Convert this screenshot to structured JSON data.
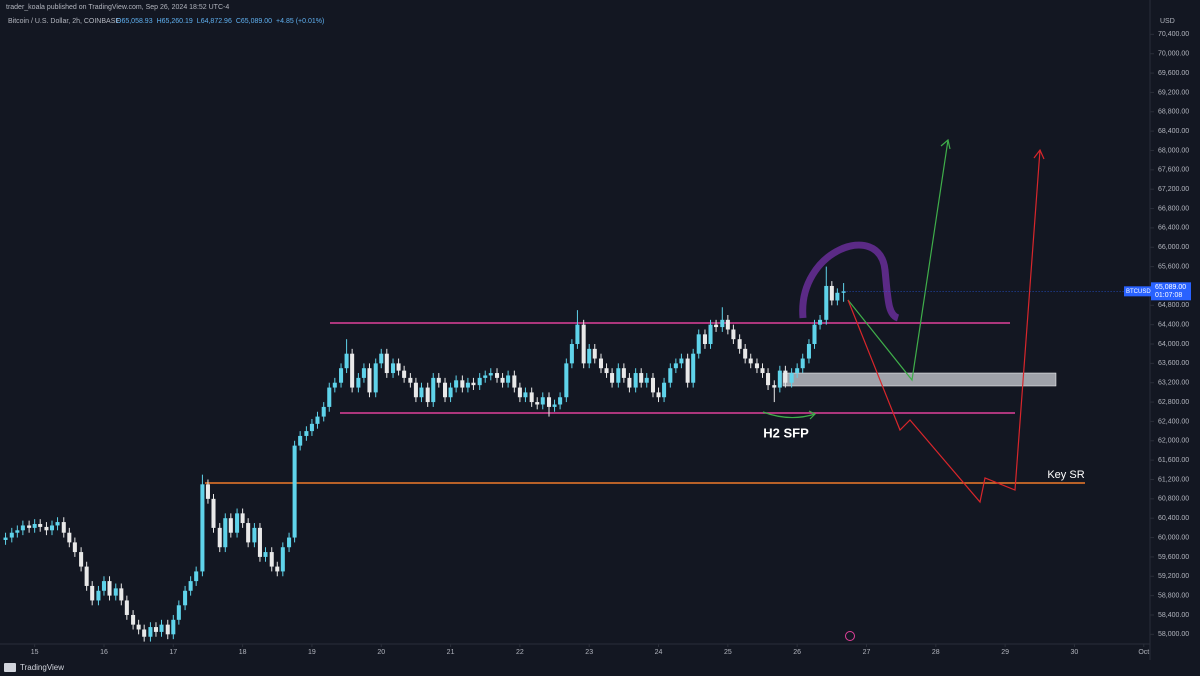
{
  "chart_data": {
    "type": "candlestick",
    "published": "trader_koala published on TradingView.com, Sep 26, 2024 18:52 UTC-4",
    "symbol": "Bitcoin / U.S. Dollar, 2h, COINBASE",
    "ohlc_header": [
      "O65,058.93",
      "H65,260.19",
      "L64,872.96",
      "C65,089.00",
      "+4.85 (+0.01%)"
    ],
    "currency": "USD",
    "price_tag": {
      "symbol": "BTCUSD",
      "price": "65,089.00",
      "countdown": "01:07:08"
    },
    "annotations": [
      "H2 SFP",
      "Key SR"
    ],
    "footer": "TradingView",
    "up_color": "#5fd3ea",
    "down_color": "#e9e9e9",
    "grid": false,
    "xlim": [
      14.5,
      31.09
    ],
    "ylim": [
      57800,
      70800
    ],
    "xticks": [
      15,
      16,
      17,
      18,
      19,
      20,
      21,
      22,
      23,
      24,
      25,
      26,
      27,
      28,
      29,
      30,
      {
        "value": 31,
        "label": "Oct"
      }
    ],
    "yticks": [
      {
        "value": 58000,
        "label": "58,000.00"
      },
      {
        "value": 58400,
        "label": "58,400.00"
      },
      {
        "value": 58800,
        "label": "58,800.00"
      },
      {
        "value": 59200,
        "label": "59,200.00"
      },
      {
        "value": 59600,
        "label": "59,600.00"
      },
      {
        "value": 60000,
        "label": "60,000.00"
      },
      {
        "value": 60400,
        "label": "60,400.00"
      },
      {
        "value": 60800,
        "label": "60,800.00"
      },
      {
        "value": 61200,
        "label": "61,200.00"
      },
      {
        "value": 61600,
        "label": "61,600.00"
      },
      {
        "value": 62000,
        "label": "62,000.00"
      },
      {
        "value": 62400,
        "label": "62,400.00"
      },
      {
        "value": 62800,
        "label": "62,800.00"
      },
      {
        "value": 63200,
        "label": "63,200.00"
      },
      {
        "value": 63600,
        "label": "63,600.00"
      },
      {
        "value": 64000,
        "label": "64,000.00"
      },
      {
        "value": 64400,
        "label": "64,400.00"
      },
      {
        "value": 64800,
        "label": "64,800.00"
      },
      {
        "value": 65200,
        "label": "65,200.00"
      },
      {
        "value": 65600,
        "label": "65,600.00"
      },
      {
        "value": 66000,
        "label": "66,000.00"
      },
      {
        "value": 66400,
        "label": "66,400.00"
      },
      {
        "value": 66800,
        "label": "66,800.00"
      },
      {
        "value": 67200,
        "label": "67,200.00"
      },
      {
        "value": 67600,
        "label": "67,600.00"
      },
      {
        "value": 68000,
        "label": "68,000.00"
      },
      {
        "value": 68400,
        "label": "68,400.00"
      },
      {
        "value": 68800,
        "label": "68,800.00"
      },
      {
        "value": 69200,
        "label": "69,200.00"
      },
      {
        "value": 69600,
        "label": "69,600.00"
      },
      {
        "value": 70000,
        "label": "70,000.00"
      },
      {
        "value": 70400,
        "label": "70,400.00"
      }
    ],
    "x": [
      14.58,
      14.67,
      14.75,
      14.83,
      14.92,
      15,
      15.08,
      15.17,
      15.25,
      15.33,
      15.42,
      15.5,
      15.58,
      15.67,
      15.75,
      15.83,
      15.92,
      16,
      16.08,
      16.17,
      16.25,
      16.33,
      16.42,
      16.5,
      16.58,
      16.67,
      16.75,
      16.83,
      16.92,
      17,
      17.08,
      17.17,
      17.25,
      17.33,
      17.42,
      17.5,
      17.58,
      17.67,
      17.75,
      17.83,
      17.92,
      18,
      18.08,
      18.17,
      18.25,
      18.33,
      18.42,
      18.5,
      18.58,
      18.67,
      18.75,
      18.83,
      18.92,
      19,
      19.08,
      19.17,
      19.25,
      19.33,
      19.42,
      19.5,
      19.58,
      19.67,
      19.75,
      19.83,
      19.92,
      20,
      20.08,
      20.17,
      20.25,
      20.33,
      20.42,
      20.5,
      20.58,
      20.67,
      20.75,
      20.83,
      20.92,
      21,
      21.08,
      21.17,
      21.25,
      21.33,
      21.42,
      21.5,
      21.58,
      21.67,
      21.75,
      21.83,
      21.92,
      22,
      22.08,
      22.17,
      22.25,
      22.33,
      22.42,
      22.5,
      22.58,
      22.67,
      22.75,
      22.83,
      22.92,
      23,
      23.08,
      23.17,
      23.25,
      23.33,
      23.42,
      23.5,
      23.58,
      23.67,
      23.75,
      23.83,
      23.92,
      24,
      24.08,
      24.17,
      24.25,
      24.33,
      24.42,
      24.5,
      24.58,
      24.67,
      24.75,
      24.83,
      24.92,
      25,
      25.08,
      25.17,
      25.25,
      25.33,
      25.42,
      25.5,
      25.58,
      25.67,
      25.75,
      25.83,
      25.92,
      26,
      26.08,
      26.17,
      26.25,
      26.33,
      26.42,
      26.5,
      26.58,
      26.67
    ],
    "open": [
      59950,
      60000,
      60100,
      60150,
      60250,
      60200,
      60280,
      60220,
      60150,
      60250,
      60320,
      60100,
      59900,
      59700,
      59400,
      59000,
      58700,
      58900,
      59100,
      58800,
      58950,
      58700,
      58400,
      58200,
      58100,
      57950,
      58150,
      58050,
      58200,
      58000,
      58300,
      58600,
      58900,
      59100,
      59300,
      61100,
      60800,
      60200,
      59800,
      60400,
      60100,
      60500,
      60300,
      59900,
      60200,
      59600,
      59700,
      59400,
      59300,
      59800,
      60000,
      61900,
      62100,
      62200,
      62350,
      62500,
      62700,
      63100,
      63200,
      63500,
      63800,
      63100,
      63300,
      63500,
      63000,
      63600,
      63800,
      63400,
      63600,
      63450,
      63300,
      63200,
      62900,
      63100,
      62800,
      63300,
      63200,
      62900,
      63100,
      63250,
      63100,
      63200,
      63150,
      63300,
      63350,
      63400,
      63300,
      63200,
      63350,
      63100,
      62900,
      63000,
      62800,
      62750,
      62900,
      62700,
      62750,
      62900,
      63600,
      64000,
      64400,
      63600,
      63900,
      63700,
      63500,
      63400,
      63200,
      63500,
      63300,
      63100,
      63400,
      63200,
      63300,
      63000,
      62900,
      63200,
      63500,
      63600,
      63700,
      63200,
      63800,
      64200,
      64000,
      64400,
      64350,
      64500,
      64300,
      64100,
      63900,
      63700,
      63600,
      63500,
      63400,
      63150,
      63100,
      63450,
      63200,
      63400,
      63500,
      63700,
      64000,
      64400,
      64500,
      65200,
      64900,
      65058.93
    ],
    "high": [
      60100,
      60200,
      60250,
      60350,
      60350,
      60380,
      60380,
      60320,
      60350,
      60420,
      60420,
      60200,
      60000,
      59800,
      59500,
      59100,
      59000,
      59200,
      59200,
      59050,
      59050,
      58800,
      58500,
      58300,
      58200,
      58250,
      58250,
      58300,
      58300,
      58400,
      58700,
      59000,
      59200,
      59400,
      61300,
      61200,
      60900,
      60300,
      60500,
      60500,
      60600,
      60600,
      60400,
      60300,
      60300,
      59800,
      59800,
      59500,
      59900,
      60100,
      62000,
      62200,
      62300,
      62450,
      62600,
      62800,
      63200,
      63300,
      63600,
      64100,
      63900,
      63400,
      63600,
      63600,
      63700,
      63900,
      63900,
      63700,
      63700,
      63550,
      63400,
      63300,
      63200,
      63200,
      63400,
      63400,
      63300,
      63200,
      63350,
      63350,
      63300,
      63300,
      63400,
      63450,
      63500,
      63500,
      63400,
      63450,
      63450,
      63200,
      63100,
      63100,
      62900,
      63000,
      63000,
      62850,
      63000,
      63700,
      64100,
      64700,
      64500,
      64000,
      64000,
      63800,
      63600,
      63500,
      63600,
      63600,
      63400,
      63500,
      63500,
      63400,
      63400,
      63100,
      63300,
      63600,
      63700,
      63800,
      63800,
      63900,
      64300,
      64300,
      64500,
      64500,
      64760,
      64600,
      64400,
      64200,
      64000,
      63800,
      63700,
      63600,
      63500,
      63250,
      63550,
      63550,
      63500,
      63600,
      63800,
      64100,
      64500,
      64600,
      65600,
      65300,
      65150,
      65260.19
    ],
    "low": [
      59850,
      59900,
      60000,
      60050,
      60100,
      60100,
      60120,
      60050,
      60050,
      60150,
      60000,
      59800,
      59600,
      59300,
      58900,
      58600,
      58600,
      58800,
      58700,
      58700,
      58600,
      58300,
      58100,
      58000,
      57850,
      57850,
      57950,
      57950,
      57900,
      57900,
      58200,
      58500,
      58800,
      59000,
      59200,
      60700,
      60100,
      59700,
      59700,
      60000,
      60000,
      60200,
      59800,
      59800,
      59500,
      59500,
      59300,
      59200,
      59200,
      59700,
      59900,
      61800,
      62000,
      62100,
      62250,
      62400,
      62600,
      63000,
      63100,
      63400,
      63000,
      63000,
      63200,
      62900,
      62900,
      63500,
      63300,
      63300,
      63350,
      63200,
      63100,
      62800,
      62800,
      62700,
      62700,
      63100,
      62800,
      62800,
      63000,
      63000,
      63000,
      63050,
      63050,
      63200,
      63250,
      63200,
      63100,
      63100,
      63000,
      62800,
      62800,
      62700,
      62650,
      62650,
      62500,
      62600,
      62650,
      62800,
      63500,
      63900,
      63500,
      63500,
      63600,
      63400,
      63300,
      63100,
      63100,
      63200,
      63000,
      63000,
      63100,
      63100,
      62900,
      62800,
      62800,
      63100,
      63400,
      63500,
      63100,
      63100,
      63700,
      63900,
      63900,
      64250,
      64250,
      64200,
      64000,
      63800,
      63600,
      63500,
      63400,
      63300,
      63050,
      62800,
      63000,
      63100,
      63100,
      63300,
      63400,
      63600,
      63900,
      64300,
      64400,
      64800,
      64800,
      64872.96
    ],
    "close": [
      60000,
      60100,
      60150,
      60250,
      60200,
      60280,
      60220,
      60150,
      60250,
      60320,
      60100,
      59900,
      59700,
      59400,
      59000,
      58700,
      58900,
      59100,
      58800,
      58950,
      58700,
      58400,
      58200,
      58100,
      57950,
      58150,
      58050,
      58200,
      58000,
      58300,
      58600,
      58900,
      59100,
      59300,
      61100,
      60800,
      60200,
      59800,
      60400,
      60100,
      60500,
      60300,
      59900,
      60200,
      59600,
      59700,
      59400,
      59300,
      59800,
      60000,
      61900,
      62100,
      62200,
      62350,
      62500,
      62700,
      63100,
      63200,
      63500,
      63800,
      63100,
      63300,
      63500,
      63000,
      63600,
      63800,
      63400,
      63600,
      63450,
      63300,
      63200,
      62900,
      63100,
      62800,
      63300,
      63200,
      62900,
      63100,
      63250,
      63100,
      63200,
      63150,
      63300,
      63350,
      63400,
      63300,
      63200,
      63350,
      63100,
      62900,
      63000,
      62800,
      62750,
      62900,
      62700,
      62750,
      62900,
      63600,
      64000,
      64400,
      63600,
      63900,
      63700,
      63500,
      63400,
      63200,
      63500,
      63300,
      63100,
      63400,
      63200,
      63300,
      63000,
      62900,
      63200,
      63500,
      63600,
      63700,
      63200,
      63800,
      64200,
      64000,
      64400,
      64350,
      64500,
      64300,
      64100,
      63900,
      63700,
      63600,
      63500,
      63400,
      63150,
      63100,
      63450,
      63200,
      63400,
      63500,
      63700,
      64000,
      64400,
      64500,
      65200,
      64900,
      65058.93,
      65089
    ]
  }
}
